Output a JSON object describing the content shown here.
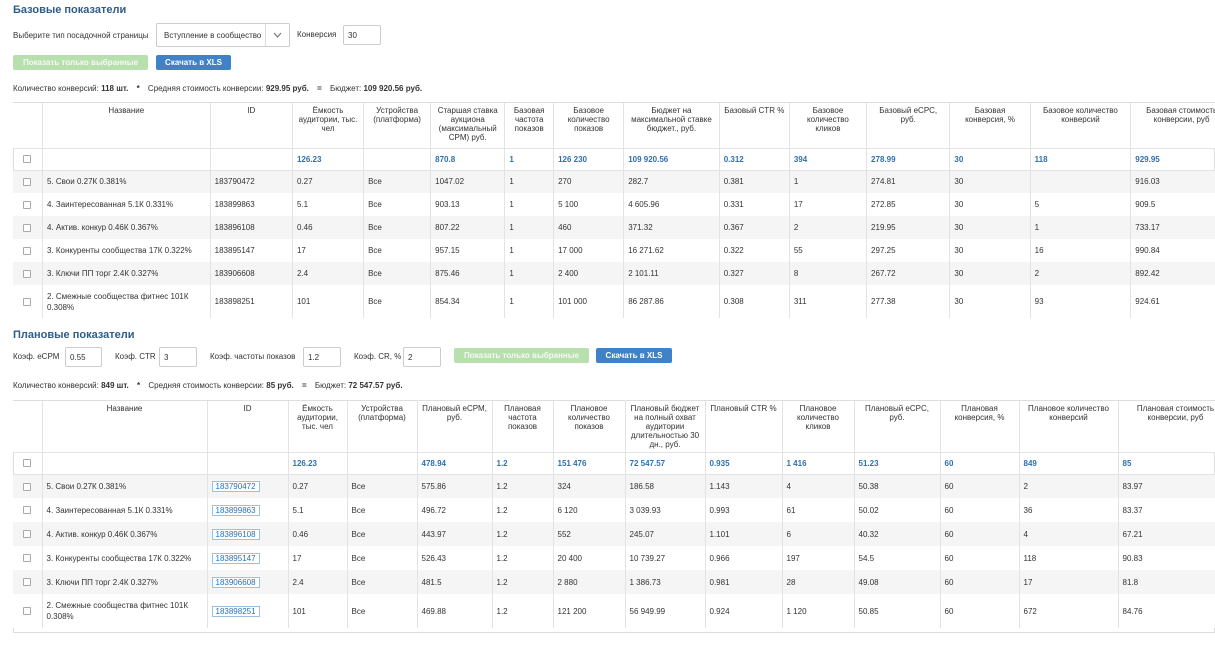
{
  "base": {
    "title": "Базовые показатели",
    "landing_label": "Выберите тип посадочной страницы",
    "landing_value": "Вступление в сообщество",
    "conversion_label": "Конверсия",
    "conversion_value": "30",
    "show_selected_label": "Показать только выбранные",
    "download_label": "Скачать в XLS",
    "summary": {
      "count_label": "Количество конверсий:",
      "count_value": "118 шт.",
      "sep1": "*",
      "cost_label": "Средняя стоимость конверсии:",
      "cost_value": "929.95 руб.",
      "sep2": "=",
      "budget_label": "Бюджет:",
      "budget_value": "109 920.56 руб."
    },
    "headers": [
      "Название",
      "ID",
      "Ёмкость аудитории, тыс. чел",
      "Устройства (платформа)",
      "Старшая ставка аукциона (максимальный CPM) руб.",
      "Базовая частота показов",
      "Базовое количество показов",
      "Бюджет на максимальной ставке бюджет., руб.",
      "Базовый CTR %",
      "Базовое количество кликов",
      "Базовый eCPC, руб.",
      "Базовая конверсия, %",
      "Базовое количество конверсий",
      "Базовая стоимость конверсии, руб"
    ],
    "totals": [
      "",
      "",
      "126.23",
      "",
      "870.8",
      "1",
      "126 230",
      "109 920.56",
      "0.312",
      "394",
      "278.99",
      "30",
      "118",
      "929.95"
    ],
    "rows": [
      [
        "5. Свои 0.27К 0.381%",
        "183790472",
        "0.27",
        "Все",
        "1047.02",
        "1",
        "270",
        "282.7",
        "0.381",
        "1",
        "274.81",
        "30",
        "",
        "916.03"
      ],
      [
        "4. Заинтересованная 5.1К 0.331%",
        "183899863",
        "5.1",
        "Все",
        "903.13",
        "1",
        "5 100",
        "4 605.96",
        "0.331",
        "17",
        "272.85",
        "30",
        "5",
        "909.5"
      ],
      [
        "4. Актив. конкур 0.46К 0.367%",
        "183896108",
        "0.46",
        "Все",
        "807.22",
        "1",
        "460",
        "371.32",
        "0.367",
        "2",
        "219.95",
        "30",
        "1",
        "733.17"
      ],
      [
        "3. Конкуренты сообщества 17К 0.322%",
        "183895147",
        "17",
        "Все",
        "957.15",
        "1",
        "17 000",
        "16 271.62",
        "0.322",
        "55",
        "297.25",
        "30",
        "16",
        "990.84"
      ],
      [
        "3. Ключи ПП торг 2.4К 0.327%",
        "183906608",
        "2.4",
        "Все",
        "875.46",
        "1",
        "2 400",
        "2 101.11",
        "0.327",
        "8",
        "267.72",
        "30",
        "2",
        "892.42"
      ],
      [
        "2. Смежные сообщества фитнес 101К 0.308%",
        "183898251",
        "101",
        "Все",
        "854.34",
        "1",
        "101 000",
        "86 287.86",
        "0.308",
        "311",
        "277.38",
        "30",
        "93",
        "924.61"
      ]
    ]
  },
  "plan": {
    "title": "Плановые показатели",
    "ecpm_label": "Коэф. eCPM",
    "ecpm_value": "0.55",
    "ctr_label": "Коэф. CTR",
    "ctr_value": "3",
    "freq_label": "Коэф. частоты показов",
    "freq_value": "1.2",
    "cr_label": "Коэф. CR, %",
    "cr_value": "2",
    "show_selected_label": "Показать только выбранные",
    "download_label": "Скачать в XLS",
    "summary": {
      "count_label": "Количество конверсий:",
      "count_value": "849 шт.",
      "sep1": "*",
      "cost_label": "Средняя стоимость конверсии:",
      "cost_value": "85 руб.",
      "sep2": "=",
      "budget_label": "Бюджет:",
      "budget_value": "72 547.57 руб."
    },
    "headers": [
      "Название",
      "ID",
      "Ёмкость аудитории, тыс. чел",
      "Устройства (платформа)",
      "Плановый eCPM, руб.",
      "Плановая частота показов",
      "Плановое количество показов",
      "Плановый бюджет на полный охват аудитории длительностью 30 дн., руб.",
      "Плановый CTR %",
      "Плановое количество кликов",
      "Плановый eCPC, руб.",
      "Плановая конверсия, %",
      "Плановое количество конверсий",
      "Плановая стоимость конверсии, руб"
    ],
    "totals": [
      "",
      "",
      "126.23",
      "",
      "478.94",
      "1.2",
      "151 476",
      "72 547.57",
      "0.935",
      "1 416",
      "51.23",
      "60",
      "849",
      "85"
    ],
    "rows": [
      [
        "5. Свои 0.27К 0.381%",
        "183790472",
        "0.27",
        "Все",
        "575.86",
        "1.2",
        "324",
        "186.58",
        "1.143",
        "4",
        "50.38",
        "60",
        "2",
        "83.97"
      ],
      [
        "4. Заинтересованная 5.1К 0.331%",
        "183899863",
        "5.1",
        "Все",
        "496.72",
        "1.2",
        "6 120",
        "3 039.93",
        "0.993",
        "61",
        "50.02",
        "60",
        "36",
        "83.37"
      ],
      [
        "4. Актив. конкур 0.46К 0.367%",
        "183896108",
        "0.46",
        "Все",
        "443.97",
        "1.2",
        "552",
        "245.07",
        "1.101",
        "6",
        "40.32",
        "60",
        "4",
        "67.21"
      ],
      [
        "3. Конкуренты сообщества 17К 0.322%",
        "183895147",
        "17",
        "Все",
        "526.43",
        "1.2",
        "20 400",
        "10 739.27",
        "0.966",
        "197",
        "54.5",
        "60",
        "118",
        "90.83"
      ],
      [
        "3. Ключи ПП торг 2.4К 0.327%",
        "183906608",
        "2.4",
        "Все",
        "481.5",
        "1.2",
        "2 880",
        "1 386.73",
        "0.981",
        "28",
        "49.08",
        "60",
        "17",
        "81.8"
      ],
      [
        "2. Смежные сообщества фитнес 101К 0.308%",
        "183898251",
        "101",
        "Все",
        "469.88",
        "1.2",
        "121 200",
        "56 949.99",
        "0.924",
        "1 120",
        "50.85",
        "60",
        "672",
        "84.76"
      ]
    ]
  }
}
